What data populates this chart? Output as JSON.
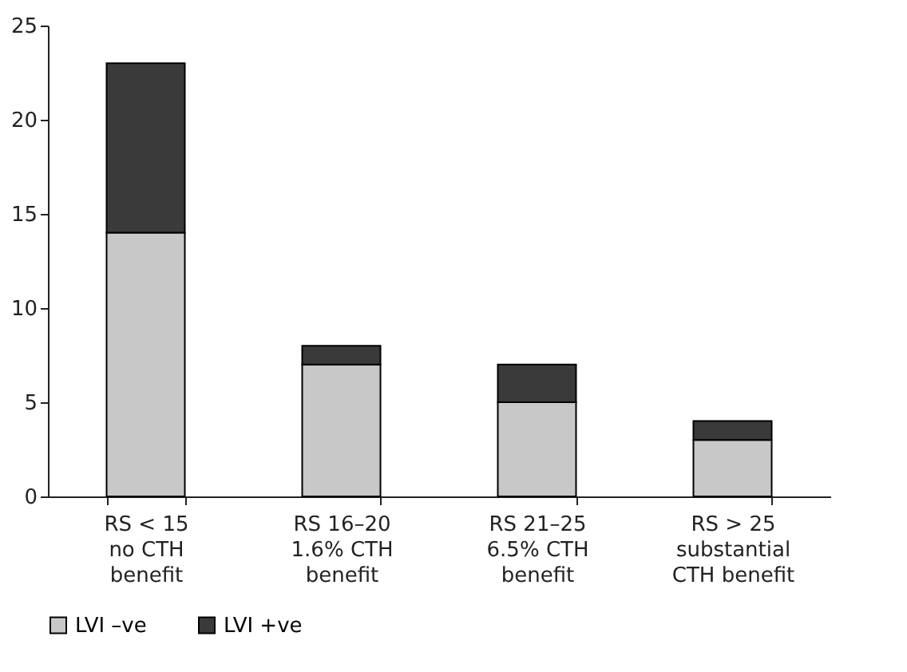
{
  "chart_data": {
    "type": "bar",
    "stacked": true,
    "categories": [
      "RS < 15\nno CTH\nbenefit",
      "RS 16–20\n1.6% CTH\nbenefit",
      "RS 21–25\n6.5% CTH\nbenefit",
      "RS > 25\nsubstantial\nCTH benefit"
    ],
    "series": [
      {
        "name": "LVI –ve",
        "color": "#c8c8c8",
        "values": [
          14,
          7,
          5,
          3
        ]
      },
      {
        "name": "LVI +ve",
        "color": "#3a3a3a",
        "values": [
          9,
          1,
          2,
          1
        ]
      }
    ],
    "ylim": [
      0,
      25
    ],
    "yticks": [
      0,
      5,
      10,
      15,
      20,
      25
    ],
    "grid": false,
    "legend": "bottom"
  }
}
